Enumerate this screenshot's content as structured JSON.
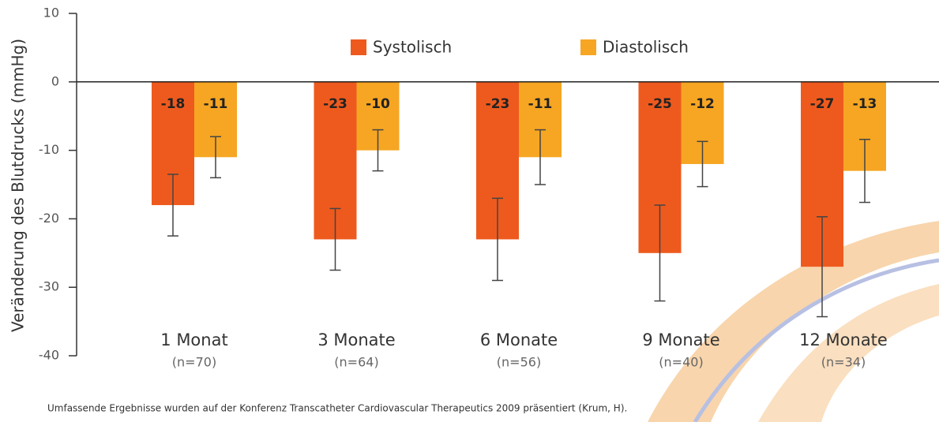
{
  "chart_data": {
    "type": "bar",
    "y_label": "Veränderung des Blutdrucks (mmHg)",
    "footnote": "Umfassende Ergebnisse wurden auf der Konferenz Transcatheter Cardiovascular Therapeutics 2009 präsentiert (Krum, H).",
    "categories": [
      "1 Monat",
      "3 Monate",
      "6 Monate",
      "9 Monate",
      "12 Monate"
    ],
    "sample_labels": [
      "(n=70)",
      "(n=64)",
      "(n=56)",
      "(n=40)",
      "(n=34)"
    ],
    "series": [
      {
        "name": "Systolisch",
        "color": "#ee5a1e",
        "values": [
          -18,
          -23,
          -23,
          -25,
          -27
        ],
        "errors": [
          4.5,
          4.5,
          6,
          7,
          7.3
        ]
      },
      {
        "name": "Diastolisch",
        "color": "#f6a623",
        "values": [
          -11,
          -10,
          -11,
          -12,
          -13
        ],
        "errors": [
          3,
          3,
          4,
          3.3,
          4.6
        ]
      }
    ],
    "ylim": [
      -40,
      10
    ],
    "yticks": [
      -40,
      -30,
      -20,
      -10,
      0,
      10
    ]
  }
}
